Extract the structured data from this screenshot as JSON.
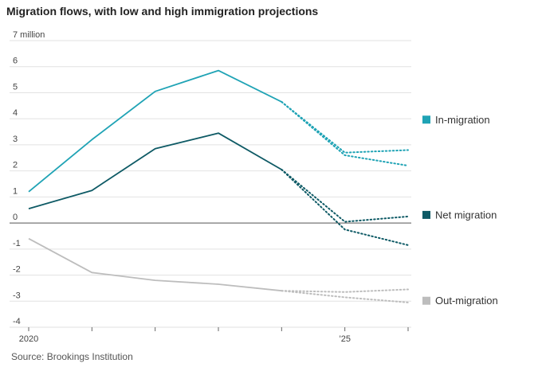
{
  "chart_data": {
    "type": "line",
    "title": "Migration flows, with low and high immigration projections",
    "source": "Source: Brookings Institution",
    "x": [
      2020,
      2021,
      2022,
      2023,
      2024,
      2025,
      2026
    ],
    "x_tick_labels": [
      "2020",
      "",
      "",
      "",
      "",
      "’25",
      ""
    ],
    "y_tick_labels": [
      "7 million",
      "6",
      "5",
      "4",
      "3",
      "2",
      "1",
      "0",
      "-1",
      "-2",
      "-3",
      "-4"
    ],
    "y_ticks": [
      7,
      6,
      5,
      4,
      3,
      2,
      1,
      0,
      -1,
      -2,
      -3,
      -4
    ],
    "ylim": [
      -4,
      7
    ],
    "xlim": [
      2020,
      2026
    ],
    "grid": true,
    "legend": "right, labels at series ends",
    "series": [
      {
        "name": "In-migration",
        "color": "#1fa3b5",
        "actual": [
          [
            2020,
            1.2
          ],
          [
            2021,
            3.2
          ],
          [
            2022,
            5.05
          ],
          [
            2023,
            5.85
          ],
          [
            2024,
            4.65
          ]
        ],
        "projections": [
          [
            [
              2024,
              4.65
            ],
            [
              2025,
              2.7
            ],
            [
              2026,
              2.8
            ]
          ],
          [
            [
              2024,
              4.65
            ],
            [
              2025,
              2.6
            ],
            [
              2026,
              2.2
            ]
          ]
        ]
      },
      {
        "name": "Net migration",
        "color": "#0e5a65",
        "actual": [
          [
            2020,
            0.55
          ],
          [
            2021,
            1.25
          ],
          [
            2022,
            2.85
          ],
          [
            2023,
            3.45
          ],
          [
            2024,
            2.05
          ]
        ],
        "projections": [
          [
            [
              2024,
              2.05
            ],
            [
              2025,
              0.05
            ],
            [
              2026,
              0.25
            ]
          ],
          [
            [
              2024,
              2.05
            ],
            [
              2025,
              -0.25
            ],
            [
              2026,
              -0.85
            ]
          ]
        ]
      },
      {
        "name": "Out-migration",
        "color": "#bdbdbd",
        "actual": [
          [
            2020,
            -0.6
          ],
          [
            2021,
            -1.9
          ],
          [
            2022,
            -2.2
          ],
          [
            2023,
            -2.35
          ],
          [
            2024,
            -2.6
          ]
        ],
        "projections": [
          [
            [
              2024,
              -2.6
            ],
            [
              2025,
              -2.65
            ],
            [
              2026,
              -2.55
            ]
          ],
          [
            [
              2024,
              -2.6
            ],
            [
              2025,
              -2.85
            ],
            [
              2026,
              -3.05
            ]
          ]
        ]
      }
    ]
  }
}
